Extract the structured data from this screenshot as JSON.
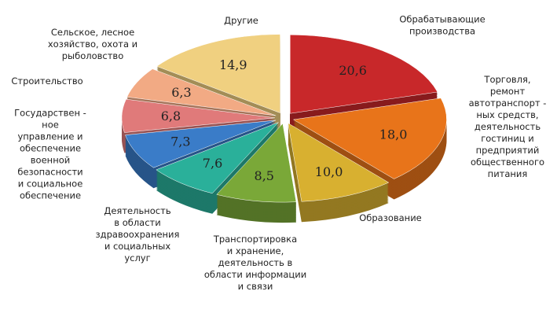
{
  "chart_data": {
    "type": "pie",
    "categories": [
      "Обрабатывающие\nпроизводства",
      "Торговля,\nремонт\nавтотранспорт -\nных средств,\nдеятельность\nгостиниц и\nпредприятий\nобщественного\nпитания",
      "Образование",
      "Транспортировка\nи хранение,\nдеятельность в\nобласти информации\nи связи",
      "Деятельность\nв области\nздравоохранения\nи социальных\nуслуг",
      "Государствен -\nное\nуправление и\nобеспечение\nвоенной\nбезопасности\nи социальное\nобеспечение",
      "Строительство",
      "Сельское, лесное\nхозяйство, охота и\nрыболовство",
      "Другие"
    ],
    "values": [
      20.6,
      18.0,
      10.0,
      8.5,
      7.6,
      7.3,
      6.8,
      6.3,
      14.9
    ],
    "value_labels": [
      "20,6",
      "18,0",
      "10,0",
      "8,5",
      "7,6",
      "7,3",
      "6,8",
      "6,3",
      "14,9"
    ],
    "colors": [
      "#c8282a",
      "#e8741a",
      "#d8b030",
      "#7aa838",
      "#2ab09a",
      "#3a7cc8",
      "#e07a7a",
      "#f2aa84",
      "#f0d080"
    ]
  }
}
